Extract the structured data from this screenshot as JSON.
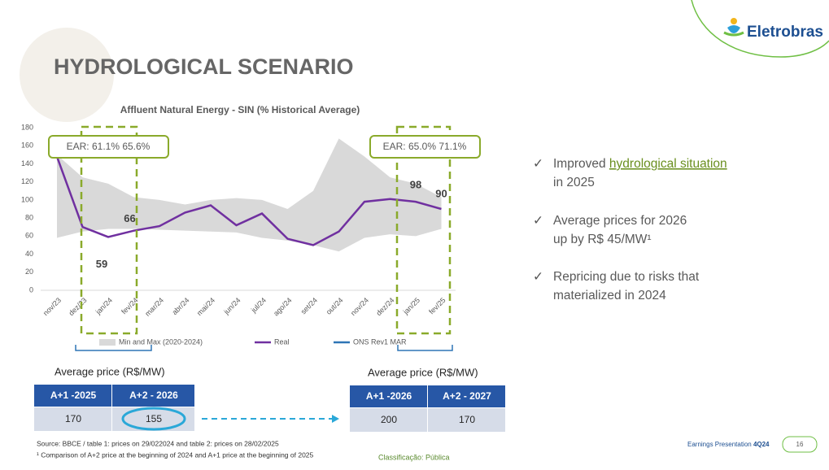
{
  "header": {
    "title": "HYDROLOGICAL SCENARIO",
    "logo": "Eletrobras"
  },
  "chart_data": {
    "type": "line",
    "title": "Affluent Natural Energy - SIN (% Historical Average)",
    "categories": [
      "nov/23",
      "dez/23",
      "jan/24",
      "fev/24",
      "mar/24",
      "abr/24",
      "mai/24",
      "jun/24",
      "jul/24",
      "ago/24",
      "set/24",
      "out/24",
      "nov/24",
      "dez/24",
      "jan/25",
      "fev/25"
    ],
    "series": [
      {
        "name": "Min and Max (2020-2024)",
        "color": "#d9d9d9",
        "low": [
          58,
          65,
          68,
          68,
          67,
          66,
          65,
          64,
          58,
          55,
          50,
          43,
          58,
          62,
          60,
          68
        ],
        "high": [
          150,
          125,
          118,
          103,
          100,
          95,
          100,
          102,
          100,
          90,
          110,
          168,
          148,
          125,
          118,
          103
        ]
      },
      {
        "name": "Real",
        "color": "#7030a0",
        "values": [
          148,
          70,
          59,
          66,
          71,
          86,
          94,
          72,
          85,
          57,
          50,
          65,
          98,
          101,
          98,
          90
        ],
        "value_labels": [
          null,
          null,
          "59",
          "66",
          null,
          null,
          null,
          null,
          null,
          null,
          null,
          null,
          null,
          null,
          "98",
          "90"
        ]
      },
      {
        "name": "ONS Rev1 MAR",
        "color": "#2e75b6",
        "values": [
          null,
          null,
          null,
          null,
          null,
          null,
          null,
          null,
          null,
          null,
          null,
          null,
          null,
          null,
          null,
          null
        ]
      }
    ],
    "ylim": [
      0,
      180
    ],
    "yticks": [
      0,
      20,
      40,
      60,
      80,
      100,
      120,
      140,
      160,
      180
    ],
    "grid": false,
    "legend": "bottom",
    "annotations": [
      "EAR: 61.1% 65.6%",
      "EAR: 65.0% 71.1%"
    ]
  },
  "tables": [
    {
      "title": "Average price (R$/MW)",
      "header": [
        "A+1 -2025",
        "A+2 - 2026"
      ],
      "rows": [
        [
          "170",
          "155"
        ]
      ]
    },
    {
      "title": "Average price (R$/MW)",
      "header": [
        "A+1 -2026",
        "A+2 - 2027"
      ],
      "rows": [
        [
          "200",
          "170"
        ]
      ]
    }
  ],
  "bullets": [
    [
      "Improved ",
      "hydrological situation",
      "in 2025"
    ],
    [
      "Average prices for 2026",
      "up by R$ 45/MW¹"
    ],
    [
      "Repricing due to risks that",
      "materialized in 2024"
    ]
  ],
  "footer": {
    "source": "Source: BBCE / table 1: prices on 29/022024 and table 2: prices on 28/02/2025",
    "footnote": "¹ Comparison of A+2 price at the beginning of 2024 and A+1 price at the beginning of 2025",
    "classification": "Classificação: Pública",
    "presentation": "Earnings Presentation ",
    "quarter": "4Q24",
    "page": "16"
  }
}
